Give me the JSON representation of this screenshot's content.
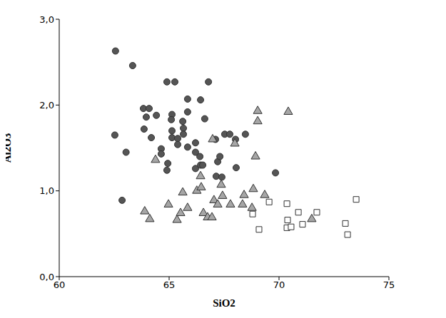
{
  "chart_data": {
    "type": "scatter",
    "x_label": "SiO2",
    "y_label": "Al2O3",
    "xlim": [
      60,
      75
    ],
    "xticks": [
      60,
      65,
      70,
      75
    ],
    "ylim": [
      0,
      3
    ],
    "yticks": [
      {
        "value": 0,
        "label": "0,0"
      },
      {
        "value": 1,
        "label": "1,0"
      },
      {
        "value": 2,
        "label": "2,0"
      },
      {
        "value": 3,
        "label": "3,0"
      }
    ],
    "grid": false,
    "series": [
      {
        "color": "#555555",
        "marker": "circle",
        "x": [
          62.56,
          63.34,
          62.53,
          63.04,
          62.86,
          63.83,
          64.09,
          63.96,
          64.42,
          63.86,
          64.19,
          64.64,
          64.64,
          64.9,
          65.26,
          64.94,
          64.9,
          65.13,
          65.1,
          65.13,
          65.13,
          65.39,
          65.39,
          65.62,
          65.65,
          65.65,
          65.84,
          65.84,
          65.84,
          66.2,
          66.2,
          66.43,
          66.2,
          66.4,
          66.43,
          66.53,
          66.62,
          66.79,
          67.11,
          67.21,
          67.31,
          67.14,
          67.4,
          67.53,
          67.76,
          68.02,
          68.47,
          68.05,
          69.84
        ],
        "values": [
          2.63,
          2.46,
          1.65,
          1.45,
          0.89,
          1.96,
          1.96,
          1.86,
          1.88,
          1.72,
          1.62,
          1.49,
          1.43,
          2.27,
          2.27,
          1.32,
          1.24,
          1.89,
          1.83,
          1.7,
          1.62,
          1.61,
          1.54,
          1.81,
          1.73,
          1.66,
          2.07,
          1.92,
          1.51,
          1.56,
          1.45,
          2.06,
          1.26,
          1.4,
          1.3,
          1.3,
          1.84,
          2.27,
          1.6,
          1.34,
          1.4,
          1.17,
          1.16,
          1.66,
          1.66,
          1.6,
          1.66,
          1.27,
          1.21
        ]
      },
      {
        "color": "#a6a6a6",
        "marker": "triangle",
        "x": [
          64.38,
          63.89,
          64.12,
          64.97,
          65.36,
          65.52,
          65.62,
          65.84,
          66.26,
          66.43,
          66.46,
          66.56,
          66.75,
          66.95,
          66.98,
          67.04,
          67.21,
          67.37,
          67.43,
          67.79,
          67.99,
          68.34,
          68.41,
          68.77,
          68.83,
          68.93,
          69.03,
          69.03,
          69.35,
          70.42,
          71.49
        ],
        "values": [
          1.36,
          0.76,
          0.67,
          0.84,
          0.66,
          0.74,
          0.98,
          0.8,
          1.0,
          1.17,
          1.04,
          0.74,
          0.69,
          0.69,
          1.6,
          0.89,
          0.84,
          1.07,
          0.94,
          0.84,
          1.55,
          0.84,
          0.95,
          0.8,
          1.02,
          1.4,
          1.81,
          1.93,
          0.95,
          1.92,
          0.67
        ]
      },
      {
        "color": "#ffffff",
        "marker": "square",
        "x": [
          68.8,
          69.09,
          69.55,
          70.36,
          70.39,
          70.36,
          70.55,
          70.88,
          71.07,
          71.72,
          73.02,
          73.12,
          73.51
        ],
        "values": [
          0.73,
          0.55,
          0.87,
          0.85,
          0.66,
          0.57,
          0.58,
          0.75,
          0.61,
          0.75,
          0.62,
          0.49,
          0.9
        ]
      }
    ]
  }
}
